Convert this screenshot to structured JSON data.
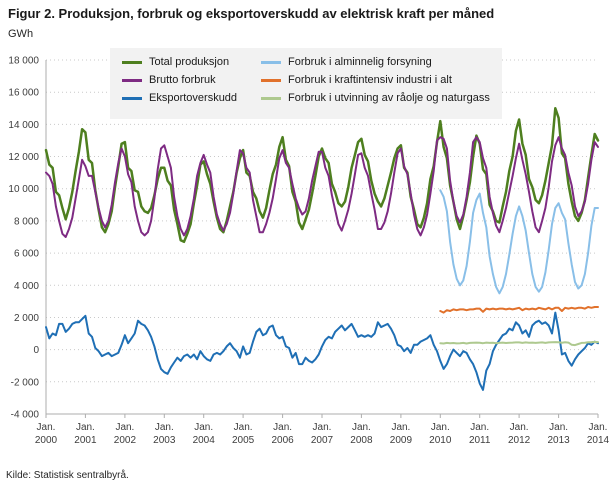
{
  "title": "Figur 2. Produksjon, forbruk og eksportoverskudd av elektrisk kraft per måned",
  "source": "Kilde: Statistisk sentralbyrå.",
  "chart_data": {
    "type": "line",
    "title": "Figur 2. Produksjon, forbruk og eksportoverskudd av elektrisk kraft per måned",
    "xlabel": "",
    "ylabel": "GWh",
    "ylim": [
      -4000,
      18000
    ],
    "ytick_step": 2000,
    "ytick_labels": [
      "-4 000",
      "-2 000",
      "0",
      "2 000",
      "4 000",
      "6 000",
      "8 000",
      "10 000",
      "12 000",
      "14 000",
      "16 000",
      "18 000"
    ],
    "x_month_label": "Jan.",
    "x_tick_years": [
      "2000",
      "2001",
      "2002",
      "2003",
      "2004",
      "2005",
      "2006",
      "2007",
      "2008",
      "2009",
      "2010",
      "2011",
      "2012",
      "2013",
      "2014"
    ],
    "x_unit": "month",
    "grid": true,
    "legend_position": "top",
    "series": [
      {
        "name": "Total produksjon",
        "color": "#4e7f1f",
        "width": 2.5,
        "start_month": 0,
        "values": [
          12400,
          11500,
          11300,
          9800,
          9600,
          8800,
          8100,
          8800,
          9800,
          11100,
          12300,
          13700,
          13500,
          11800,
          11600,
          9900,
          8700,
          7600,
          7300,
          7800,
          8600,
          10100,
          11400,
          12800,
          12900,
          11300,
          11100,
          9900,
          9800,
          8900,
          8600,
          8500,
          8800,
          9600,
          10600,
          11300,
          11300,
          10500,
          10200,
          8700,
          7800,
          6800,
          6700,
          7200,
          7800,
          9100,
          10200,
          11500,
          11700,
          10900,
          10300,
          9200,
          8200,
          7500,
          7300,
          8000,
          8900,
          9800,
          11000,
          11900,
          12400,
          11000,
          10800,
          9800,
          9400,
          8600,
          8200,
          8800,
          9900,
          10900,
          11500,
          12600,
          13200,
          11800,
          11400,
          9800,
          9200,
          7900,
          7500,
          8100,
          8700,
          9700,
          10800,
          12000,
          12500,
          11900,
          11600,
          10300,
          9800,
          9100,
          8900,
          9200,
          10100,
          11300,
          12100,
          12900,
          13100,
          12100,
          11700,
          10500,
          9700,
          9200,
          8900,
          9400,
          10200,
          11000,
          11900,
          12500,
          12700,
          11300,
          11000,
          9500,
          8700,
          7800,
          7600,
          8200,
          9100,
          10600,
          11400,
          12900,
          14200,
          12600,
          11900,
          10200,
          9200,
          8100,
          7500,
          8300,
          9300,
          10400,
          12000,
          13300,
          12800,
          11200,
          10900,
          9000,
          8600,
          8000,
          7900,
          8900,
          9800,
          11100,
          12000,
          13600,
          14300,
          12800,
          12100,
          10600,
          10100,
          9300,
          9100,
          9600,
          10500,
          11600,
          12700,
          15000,
          14400,
          12200,
          11900,
          10300,
          9200,
          8300,
          8000,
          8500,
          9300,
          10700,
          12100,
          13400,
          13000
        ]
      },
      {
        "name": "Brutto forbruk",
        "color": "#7e2b83",
        "width": 2,
        "start_month": 0,
        "values": [
          11000,
          10800,
          10300,
          8900,
          8000,
          7200,
          7000,
          7500,
          8200,
          9400,
          10600,
          11800,
          11400,
          10800,
          10800,
          9800,
          8800,
          8000,
          7600,
          8000,
          9000,
          10400,
          11600,
          12500,
          12000,
          10900,
          10400,
          8900,
          8000,
          7300,
          7100,
          7300,
          8000,
          9400,
          11200,
          12500,
          12700,
          12000,
          11300,
          9500,
          8300,
          7500,
          7100,
          7500,
          8300,
          9400,
          10800,
          11600,
          12100,
          11500,
          11000,
          9500,
          8400,
          7800,
          7400,
          7800,
          8500,
          9700,
          11100,
          12400,
          12200,
          11300,
          11000,
          9300,
          8300,
          7300,
          7300,
          7800,
          8500,
          9400,
          10600,
          11900,
          12400,
          11600,
          11300,
          10300,
          9400,
          8800,
          8400,
          8600,
          9400,
          10500,
          11400,
          12300,
          12300,
          11300,
          10800,
          9600,
          8700,
          7800,
          7400,
          8000,
          8700,
          9700,
          10900,
          12100,
          12200,
          11300,
          10800,
          9700,
          8700,
          7500,
          7500,
          7900,
          8600,
          9700,
          11000,
          12200,
          12500,
          11400,
          10900,
          9700,
          8400,
          7500,
          7100,
          7600,
          8400,
          9700,
          11100,
          13000,
          13200,
          13100,
          12500,
          10500,
          9200,
          8300,
          7900,
          8400,
          9500,
          11000,
          12900,
          13200,
          12900,
          11900,
          11300,
          9500,
          8500,
          7700,
          7300,
          8000,
          8800,
          9800,
          10800,
          11900,
          12800,
          11800,
          10900,
          9800,
          8600,
          7600,
          7300,
          8000,
          8800,
          10100,
          11700,
          12700,
          13200,
          12500,
          12100,
          11000,
          10200,
          8900,
          8300,
          8600,
          9200,
          10300,
          11800,
          12900,
          12600
        ]
      },
      {
        "name": "Eksportoverskudd",
        "color": "#1f6fb5",
        "width": 2,
        "start_month": 0,
        "values": [
          1400,
          700,
          1000,
          900,
          1600,
          1600,
          1100,
          1300,
          1600,
          1700,
          1700,
          1900,
          2100,
          1000,
          800,
          100,
          -100,
          -400,
          -300,
          -200,
          -400,
          -300,
          -200,
          300,
          900,
          400,
          700,
          1000,
          1800,
          1600,
          1500,
          1200,
          800,
          200,
          -600,
          -1200,
          -1400,
          -1500,
          -1100,
          -800,
          -500,
          -700,
          -400,
          -300,
          -500,
          -300,
          -600,
          -100,
          -400,
          -600,
          -700,
          -300,
          -200,
          -300,
          -100,
          200,
          400,
          100,
          -100,
          -500,
          200,
          -300,
          -200,
          500,
          1100,
          1300,
          900,
          1000,
          1400,
          1500,
          900,
          700,
          800,
          200,
          100,
          -500,
          -200,
          -900,
          -900,
          -500,
          -700,
          -800,
          -600,
          -300,
          200,
          600,
          800,
          700,
          1100,
          1300,
          1500,
          1200,
          1400,
          1600,
          1200,
          800,
          900,
          800,
          900,
          800,
          1000,
          1700,
          1400,
          1500,
          1600,
          1300,
          900,
          300,
          200,
          -100,
          100,
          -200,
          300,
          300,
          500,
          600,
          700,
          900,
          300,
          -100,
          -700,
          -1200,
          -900,
          -400,
          0,
          -200,
          -400,
          -100,
          -200,
          -600,
          -900,
          -1400,
          -2100,
          -2500,
          -1300,
          -900,
          -100,
          300,
          600,
          900,
          1000,
          1300,
          1200,
          1700,
          1500,
          1000,
          1200,
          800,
          1500,
          1700,
          1800,
          1600,
          1700,
          1500,
          1000,
          2300,
          1200,
          -300,
          -200,
          -700,
          -1000,
          -600,
          -300,
          -100,
          100,
          400,
          300,
          500,
          400
        ]
      },
      {
        "name": "Forbruk i alminnelig forsyning",
        "color": "#89bfe8",
        "width": 2,
        "start_month": 120,
        "values": [
          9900,
          9500,
          8600,
          6700,
          5300,
          4400,
          4000,
          4300,
          5200,
          6700,
          8500,
          9300,
          9700,
          8500,
          7600,
          5800,
          4700,
          3900,
          3500,
          3900,
          4700,
          5900,
          7200,
          8300,
          8900,
          8300,
          7400,
          6000,
          4700,
          3900,
          3600,
          3900,
          4800,
          6200,
          7800,
          8800,
          9100,
          8500,
          8100,
          6600,
          5300,
          4200,
          3800,
          4000,
          4700,
          6000,
          7700,
          8800,
          8800
        ]
      },
      {
        "name": "Forbruk i kraftintensiv industri i alt",
        "color": "#e1712b",
        "width": 2,
        "start_month": 120,
        "values": [
          2400,
          2300,
          2450,
          2400,
          2500,
          2450,
          2500,
          2500,
          2450,
          2500,
          2500,
          2550,
          2550,
          2350,
          2550,
          2500,
          2550,
          2500,
          2550,
          2550,
          2500,
          2550,
          2500,
          2550,
          2600,
          2450,
          2550,
          2500,
          2550,
          2500,
          2600,
          2550,
          2500,
          2600,
          2500,
          2600,
          2600,
          2400,
          2600,
          2550,
          2600,
          2550,
          2600,
          2600,
          2550,
          2650,
          2600,
          2650,
          2650
        ]
      },
      {
        "name": "Forbruk i utvinning av råolje og naturgass",
        "color": "#aec98f",
        "width": 2,
        "start_month": 120,
        "values": [
          400,
          380,
          420,
          400,
          410,
          390,
          400,
          420,
          380,
          420,
          430,
          440,
          430,
          400,
          440,
          420,
          430,
          400,
          420,
          440,
          410,
          430,
          440,
          450,
          450,
          420,
          450,
          430,
          440,
          420,
          440,
          450,
          420,
          450,
          460,
          470,
          460,
          430,
          460,
          440,
          300,
          280,
          350,
          420,
          430,
          460,
          470,
          480,
          470
        ]
      }
    ]
  }
}
